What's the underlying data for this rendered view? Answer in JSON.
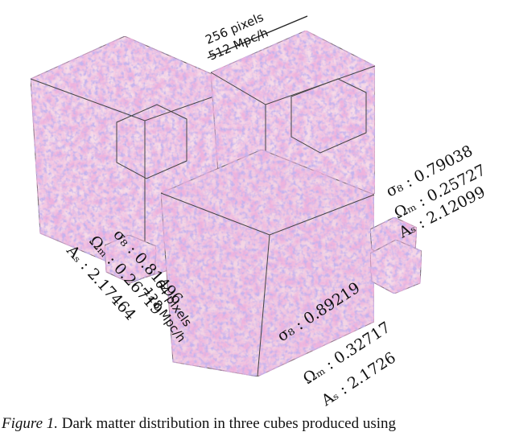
{
  "figure": {
    "scale_large": [
      "256 pixels",
      "512 Mpc/h"
    ],
    "scale_small": [
      "64 pixels",
      "128 Mpc/h"
    ],
    "cubes": [
      {
        "params": [
          "σ₈ : 0.81496",
          "Ωₘ : 0.26719",
          "Aₛ : 2.17464"
        ]
      },
      {
        "params": [
          "σ₈ : 0.79038",
          "Ωₘ : 0.25727",
          "Aₛ : 2.12099"
        ]
      },
      {
        "params": [
          "σ₈ : 0.89219",
          "Ωₘ : 0.32717",
          "Aₛ : 2.1726"
        ]
      }
    ],
    "caption": {
      "label": "Figure 1.",
      "text": "Dark matter distribution in three cubes produced using"
    }
  }
}
